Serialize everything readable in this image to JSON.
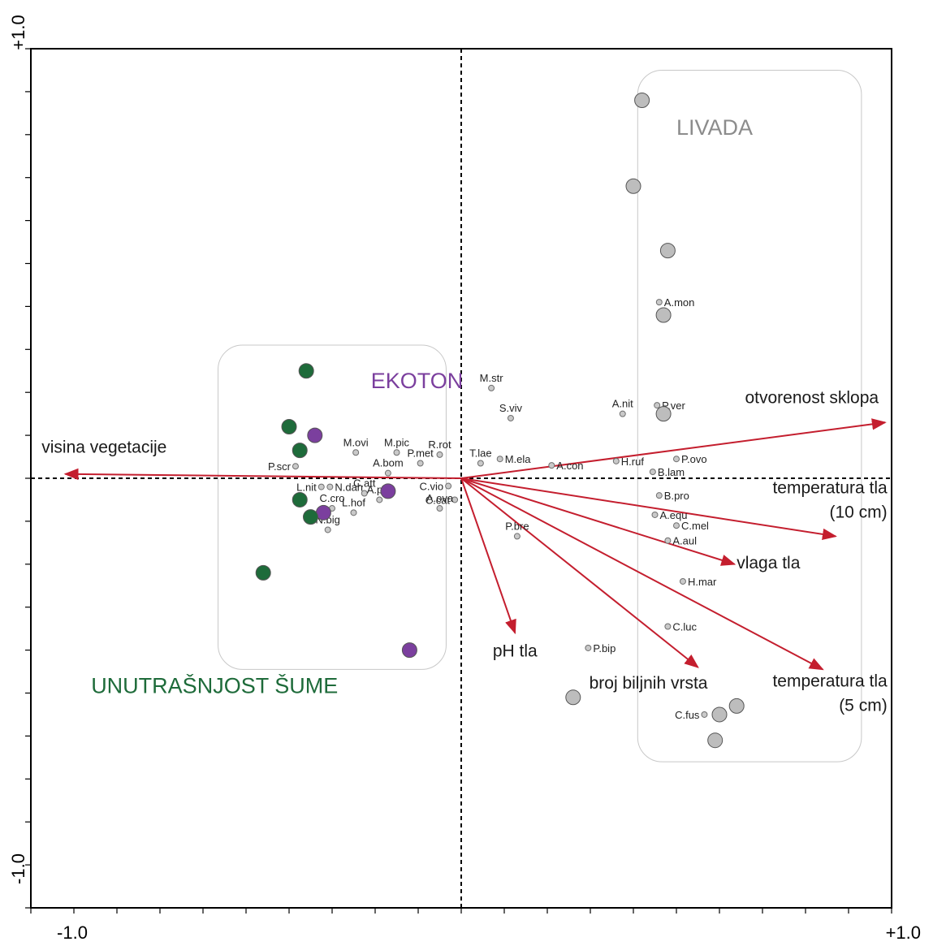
{
  "chart_data": {
    "type": "scatter",
    "subtype": "ordination-biplot",
    "xlim": [
      -1.0,
      1.0
    ],
    "ylim": [
      -1.0,
      1.0
    ],
    "x_tick_labels": {
      "min": "-1.0",
      "max": "+1.0"
    },
    "y_tick_labels": {
      "min": "-1.0",
      "max": "+1.0"
    },
    "group_labels": [
      {
        "id": "livada",
        "text": "LIVADA",
        "color": "#8c8c8c",
        "x": 0.5,
        "y": 0.8
      },
      {
        "id": "ekoton",
        "text": "EKOTON",
        "color": "#7b3f9e",
        "x": -0.21,
        "y": 0.21
      },
      {
        "id": "unutrasnjost",
        "text": "UNUTRAŠNJOST ŠUME",
        "color": "#1e6b3a",
        "x": -0.86,
        "y": -0.5
      }
    ],
    "group_boxes": [
      {
        "id": "livada-box",
        "x": [
          0.41,
          0.93
        ],
        "y": [
          -0.66,
          0.95
        ]
      },
      {
        "id": "ekoton-box",
        "x": [
          -0.565,
          -0.035
        ],
        "y": [
          -0.445,
          0.31
        ]
      }
    ],
    "sites": [
      {
        "group": "livada",
        "color": "#bdbdbd",
        "points": [
          [
            0.42,
            0.88
          ],
          [
            0.4,
            0.68
          ],
          [
            0.48,
            0.53
          ],
          [
            0.47,
            0.38
          ],
          [
            0.47,
            0.15
          ],
          [
            0.26,
            -0.51
          ],
          [
            0.6,
            -0.55
          ],
          [
            0.64,
            -0.53
          ],
          [
            0.59,
            -0.61
          ]
        ]
      },
      {
        "group": "ekoton",
        "color": "#7b3f9e",
        "points": [
          [
            -0.34,
            0.1
          ],
          [
            -0.17,
            -0.03
          ],
          [
            -0.32,
            -0.08
          ],
          [
            -0.12,
            -0.4
          ]
        ]
      },
      {
        "group": "unutrasnjost",
        "color": "#1e6b3a",
        "points": [
          [
            -0.36,
            0.25
          ],
          [
            -0.4,
            0.12
          ],
          [
            -0.375,
            0.065
          ],
          [
            -0.375,
            -0.05
          ],
          [
            -0.35,
            -0.09
          ],
          [
            -0.46,
            -0.22
          ]
        ]
      }
    ],
    "species": [
      {
        "label": "A.mon",
        "x": 0.46,
        "y": 0.41,
        "anchor": "start"
      },
      {
        "label": "M.str",
        "x": 0.07,
        "y": 0.21,
        "anchor": "middle"
      },
      {
        "label": "S.viv",
        "x": 0.115,
        "y": 0.14,
        "anchor": "middle"
      },
      {
        "label": "A.nit",
        "x": 0.375,
        "y": 0.15,
        "anchor": "middle"
      },
      {
        "label": "P.ver",
        "x": 0.455,
        "y": 0.17,
        "anchor": "start"
      },
      {
        "label": "M.ovi",
        "x": -0.245,
        "y": 0.06,
        "anchor": "middle"
      },
      {
        "label": "M.pic",
        "x": -0.15,
        "y": 0.06,
        "anchor": "middle"
      },
      {
        "label": "R.rot",
        "x": -0.05,
        "y": 0.055,
        "anchor": "middle"
      },
      {
        "label": "P.met",
        "x": -0.095,
        "y": 0.035,
        "anchor": "middle"
      },
      {
        "label": "T.lae",
        "x": 0.045,
        "y": 0.035,
        "anchor": "middle"
      },
      {
        "label": "M.ela",
        "x": 0.09,
        "y": 0.045,
        "anchor": "start"
      },
      {
        "label": "A.con",
        "x": 0.21,
        "y": 0.03,
        "anchor": "start"
      },
      {
        "label": "H.ruf",
        "x": 0.36,
        "y": 0.04,
        "anchor": "start"
      },
      {
        "label": "P.ovo",
        "x": 0.5,
        "y": 0.045,
        "anchor": "start"
      },
      {
        "label": "B.lam",
        "x": 0.445,
        "y": 0.015,
        "anchor": "start"
      },
      {
        "label": "P.scr",
        "x": -0.385,
        "y": 0.028,
        "anchor": "end"
      },
      {
        "label": "A.bom",
        "x": -0.17,
        "y": 0.012,
        "anchor": "middle"
      },
      {
        "label": "L.nit",
        "x": -0.325,
        "y": -0.02,
        "anchor": "end"
      },
      {
        "label": "N.dah",
        "x": -0.305,
        "y": -0.02,
        "anchor": "start"
      },
      {
        "label": "C.att",
        "x": -0.225,
        "y": -0.035,
        "anchor": "middle"
      },
      {
        "label": "C.vio",
        "x": -0.03,
        "y": -0.018,
        "anchor": "end"
      },
      {
        "label": "C.cat",
        "x": -0.015,
        "y": -0.05,
        "anchor": "end"
      },
      {
        "label": "C.cro",
        "x": -0.3,
        "y": -0.07,
        "anchor": "middle"
      },
      {
        "label": "A.par",
        "x": -0.19,
        "y": -0.05,
        "anchor": "middle"
      },
      {
        "label": "A.ova",
        "x": -0.05,
        "y": -0.07,
        "anchor": "middle"
      },
      {
        "label": "L.hof",
        "x": -0.25,
        "y": -0.08,
        "anchor": "middle"
      },
      {
        "label": "N.big",
        "x": -0.31,
        "y": -0.12,
        "anchor": "middle"
      },
      {
        "label": "B.pro",
        "x": 0.46,
        "y": -0.04,
        "anchor": "start"
      },
      {
        "label": "A.equ",
        "x": 0.45,
        "y": -0.085,
        "anchor": "start"
      },
      {
        "label": "C.mel",
        "x": 0.5,
        "y": -0.11,
        "anchor": "start"
      },
      {
        "label": "A.aul",
        "x": 0.48,
        "y": -0.145,
        "anchor": "start"
      },
      {
        "label": "P.bre",
        "x": 0.13,
        "y": -0.135,
        "anchor": "middle"
      },
      {
        "label": "H.mar",
        "x": 0.515,
        "y": -0.24,
        "anchor": "start"
      },
      {
        "label": "C.luc",
        "x": 0.48,
        "y": -0.345,
        "anchor": "start"
      },
      {
        "label": "P.bip",
        "x": 0.295,
        "y": -0.395,
        "anchor": "start"
      },
      {
        "label": "C.fus",
        "x": 0.565,
        "y": -0.55,
        "anchor": "end"
      }
    ],
    "vectors": [
      {
        "label": "otvorenost sklopa",
        "x": 0.985,
        "y": 0.13,
        "lines": [
          "otvorenost sklopa"
        ],
        "label_x": 0.97,
        "label_y": 0.175,
        "anchor": "end"
      },
      {
        "label": "visina vegetacije",
        "x": -0.92,
        "y": 0.01,
        "lines": [
          "visina vegetacije"
        ],
        "label_x": -0.975,
        "label_y": 0.06,
        "anchor": "start"
      },
      {
        "label": "temperatura tla (10 cm)",
        "x": 0.87,
        "y": -0.135,
        "lines": [
          "temperatura tla",
          "(10 cm)"
        ],
        "label_x": 0.99,
        "label_y": -0.035,
        "anchor": "end"
      },
      {
        "label": "vlaga tla",
        "x": 0.635,
        "y": -0.2,
        "lines": [
          "vlaga tla"
        ],
        "label_x": 0.64,
        "label_y": -0.21,
        "anchor": "start"
      },
      {
        "label": "pH tla",
        "x": 0.125,
        "y": -0.36,
        "lines": [
          "pH tla"
        ],
        "label_x": 0.125,
        "label_y": -0.415,
        "anchor": "middle"
      },
      {
        "label": "broj biljnih vrsta",
        "x": 0.55,
        "y": -0.44,
        "lines": [
          "broj biljnih vrsta"
        ],
        "label_x": 0.435,
        "label_y": -0.49,
        "anchor": "middle"
      },
      {
        "label": "temperatura tla (5 cm)",
        "x": 0.84,
        "y": -0.445,
        "lines": [
          "temperatura tla",
          "(5 cm)"
        ],
        "label_x": 0.99,
        "label_y": -0.485,
        "anchor": "end"
      }
    ]
  }
}
